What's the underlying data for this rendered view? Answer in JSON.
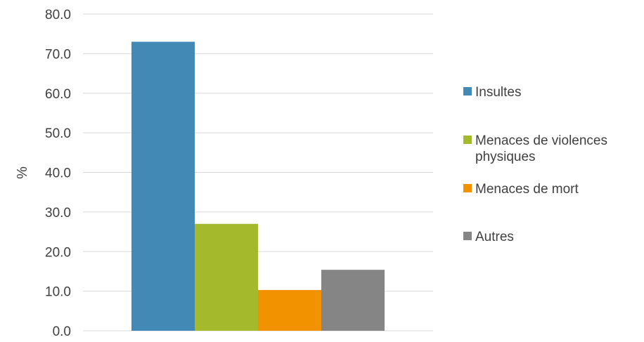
{
  "chart_data": {
    "type": "bar",
    "title": "",
    "xlabel": "",
    "ylabel": "%",
    "ylim": [
      0,
      80
    ],
    "yticks": [
      "0.0",
      "10.0",
      "20.0",
      "30.0",
      "40.0",
      "50.0",
      "60.0",
      "70.0",
      "80.0"
    ],
    "grid": true,
    "legend_position": "right",
    "categories": [
      ""
    ],
    "series": [
      {
        "name": "Insultes",
        "values": [
          73.0
        ],
        "color": "#4389b5"
      },
      {
        "name": "Menaces de violences physiques",
        "values": [
          27.0
        ],
        "color": "#a5b92c"
      },
      {
        "name": "Menaces de mort",
        "values": [
          10.3
        ],
        "color": "#f39200"
      },
      {
        "name": "Autres",
        "values": [
          15.4
        ],
        "color": "#858585"
      }
    ]
  }
}
